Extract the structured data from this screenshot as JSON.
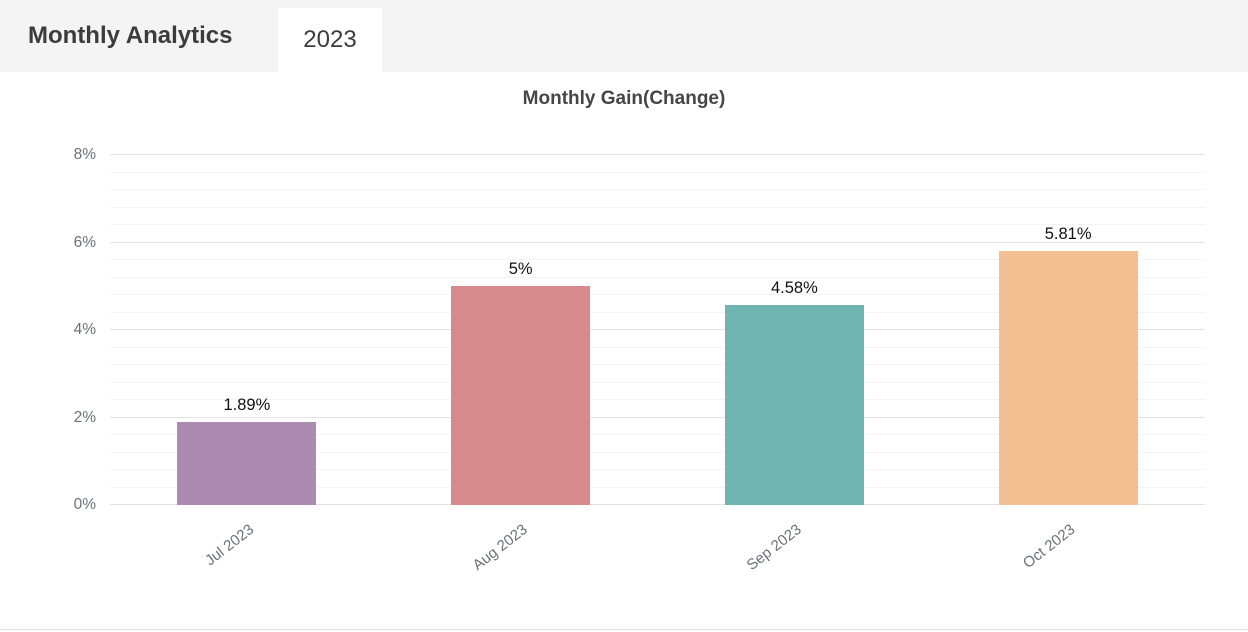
{
  "header": {
    "title": "Monthly Analytics",
    "tabs": [
      {
        "label": "2023",
        "active": true
      }
    ]
  },
  "chart_data": {
    "type": "bar",
    "title": "Monthly Gain(Change)",
    "categories": [
      "Jul 2023",
      "Aug 2023",
      "Sep 2023",
      "Oct 2023"
    ],
    "values": [
      1.89,
      5,
      4.58,
      5.81
    ],
    "value_labels": [
      "1.89%",
      "5%",
      "4.58%",
      "5.81%"
    ],
    "bar_colors": [
      "#ab8bb0",
      "#d78a8c",
      "#70b4b1",
      "#f5bf94"
    ],
    "xlabel": "",
    "ylabel": "",
    "ylim": [
      0,
      8
    ],
    "y_ticks": [
      0,
      2,
      4,
      6,
      8
    ],
    "y_tick_labels": [
      "0%",
      "2%",
      "4%",
      "6%",
      "8%"
    ],
    "minor_gridlines_between_majors": 4,
    "grid": true,
    "legend": false,
    "x_label_rotation_deg": -38
  },
  "colors": {
    "header_bg": "#f4f4f4",
    "tab_bg": "#ffffff",
    "header_text": "#3c3c3c",
    "title_text": "#464646",
    "axis_text": "#6e7079",
    "value_label_text": "#111111",
    "major_grid": "#e2e2e2",
    "minor_grid": "#f4f4f4",
    "border_line": "#e0e0e0"
  }
}
